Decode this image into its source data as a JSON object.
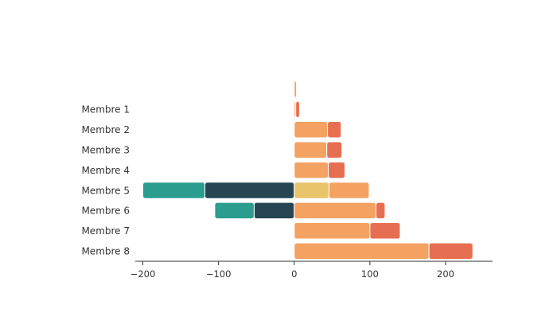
{
  "chart_data": {
    "type": "bar",
    "orientation": "horizontal",
    "stacked": true,
    "diverging": true,
    "categories": [
      "",
      "Membre 1",
      "Membre 2",
      "Membre 3",
      "Membre 4",
      "Membre 5",
      "Membre 6",
      "Membre 7",
      "Membre 8"
    ],
    "series": [
      {
        "color": "#264653",
        "values": [
          0,
          0,
          0,
          0,
          0,
          -118,
          -53,
          0,
          0
        ]
      },
      {
        "color": "#2a9d8f",
        "values": [
          0,
          0,
          0,
          0,
          0,
          -82,
          -52,
          0,
          0
        ]
      },
      {
        "color": "#e9c46a",
        "values": [
          0,
          0,
          0,
          0,
          0,
          46,
          0,
          0,
          0
        ]
      },
      {
        "color": "#f4a261",
        "values": [
          3,
          2,
          44,
          43,
          45,
          53,
          108,
          100,
          178
        ]
      },
      {
        "color": "#e76f51",
        "values": [
          0,
          5,
          18,
          20,
          22,
          0,
          12,
          40,
          58
        ]
      }
    ],
    "xticks": [
      -200,
      -100,
      0,
      100,
      200
    ],
    "xtick_labels": [
      "−200",
      "−100",
      "0",
      "100",
      "200"
    ],
    "xlim": [
      -210,
      262
    ],
    "grid": false,
    "legend": "none"
  }
}
